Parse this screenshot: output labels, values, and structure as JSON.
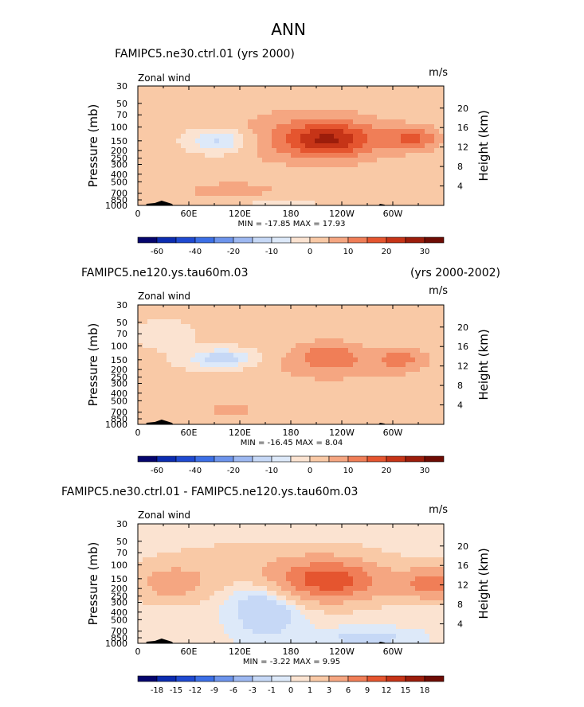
{
  "page": {
    "title": "ANN"
  },
  "chart_data": [
    {
      "type": "heatmap",
      "title": "FAMIPC5.ne30.ctrl.01 (yrs 2000)",
      "title_left": "FAMIPC5.ne30.ctrl.01 (yrs 2000)",
      "title_right": "",
      "field_label": "Zonal wind",
      "units": "m/s",
      "ylabel": "Pressure (mb)",
      "ylabel2": "Height (km)",
      "x_ticks": [
        "0",
        "60E",
        "120E",
        "180",
        "120W",
        "60W"
      ],
      "x_tick_lon": [
        0,
        60,
        120,
        180,
        240,
        300
      ],
      "xlim": [
        0,
        360
      ],
      "y_ticks": [
        "30",
        "50",
        "70",
        "100",
        "150",
        "200",
        "250",
        "300",
        "400",
        "500",
        "700",
        "850",
        "1000"
      ],
      "y_tick_p": [
        30,
        50,
        70,
        100,
        150,
        200,
        250,
        300,
        400,
        500,
        700,
        850,
        1000
      ],
      "ylim": [
        30,
        1000
      ],
      "height_ticks": [
        "20",
        "16",
        "12",
        "8",
        "4"
      ],
      "height_km": [
        20,
        16,
        12,
        8,
        4
      ],
      "min_max_text": "MIN = -17.85  MAX = 17.93",
      "min": -17.85,
      "max": 17.93,
      "colorbar_labels": [
        "-60",
        "-40",
        "-20",
        "-10",
        "0",
        "10",
        "20",
        "30"
      ],
      "colorbar_levels": [
        -60,
        -50,
        -40,
        -30,
        -20,
        -15,
        -10,
        -5,
        0,
        5,
        10,
        15,
        20,
        25,
        30
      ],
      "colorbar_colors": [
        "#05056d",
        "#0c2cb0",
        "#1f4ad1",
        "#3c6fe6",
        "#6d94ec",
        "#9db8f1",
        "#c6d8f6",
        "#dde9f9",
        "#fbe3d1",
        "#f9c9a6",
        "#f5a681",
        "#f07e57",
        "#e5552f",
        "#c63417",
        "#9c1d0b",
        "#6e0c04"
      ]
    },
    {
      "type": "heatmap",
      "title": "FAMIPC5.ne120.ys.tau60m.03 (yrs 2000-2002)",
      "title_left": "FAMIPC5.ne120.ys.tau60m.03",
      "title_right": "(yrs 2000-2002)",
      "field_label": "Zonal wind",
      "units": "m/s",
      "ylabel": "Pressure (mb)",
      "ylabel2": "Height (km)",
      "x_ticks": [
        "0",
        "60E",
        "120E",
        "180",
        "120W",
        "60W"
      ],
      "x_tick_lon": [
        0,
        60,
        120,
        180,
        240,
        300
      ],
      "xlim": [
        0,
        360
      ],
      "y_ticks": [
        "30",
        "50",
        "70",
        "100",
        "150",
        "200",
        "250",
        "300",
        "400",
        "500",
        "700",
        "850",
        "1000"
      ],
      "y_tick_p": [
        30,
        50,
        70,
        100,
        150,
        200,
        250,
        300,
        400,
        500,
        700,
        850,
        1000
      ],
      "ylim": [
        30,
        1000
      ],
      "height_ticks": [
        "20",
        "16",
        "12",
        "8",
        "4"
      ],
      "height_km": [
        20,
        16,
        12,
        8,
        4
      ],
      "min_max_text": "MIN = -16.45  MAX = 8.04",
      "min": -16.45,
      "max": 8.04,
      "colorbar_labels": [
        "-60",
        "-40",
        "-20",
        "-10",
        "0",
        "10",
        "20",
        "30"
      ],
      "colorbar_levels": [
        -60,
        -50,
        -40,
        -30,
        -20,
        -15,
        -10,
        -5,
        0,
        5,
        10,
        15,
        20,
        25,
        30
      ],
      "colorbar_colors": [
        "#05056d",
        "#0c2cb0",
        "#1f4ad1",
        "#3c6fe6",
        "#6d94ec",
        "#9db8f1",
        "#c6d8f6",
        "#dde9f9",
        "#fbe3d1",
        "#f9c9a6",
        "#f5a681",
        "#f07e57",
        "#e5552f",
        "#c63417",
        "#9c1d0b",
        "#6e0c04"
      ]
    },
    {
      "type": "heatmap",
      "title": "FAMIPC5.ne30.ctrl.01 - FAMIPC5.ne120.ys.tau60m.03",
      "title_left": "FAMIPC5.ne30.ctrl.01 - FAMIPC5.ne120.ys.tau60m.03",
      "title_right": "",
      "field_label": "Zonal wind",
      "units": "m/s",
      "ylabel": "Pressure (mb)",
      "ylabel2": "Height (km)",
      "x_ticks": [
        "0",
        "60E",
        "120E",
        "180",
        "120W",
        "60W"
      ],
      "x_tick_lon": [
        0,
        60,
        120,
        180,
        240,
        300
      ],
      "xlim": [
        0,
        360
      ],
      "y_ticks": [
        "30",
        "50",
        "70",
        "100",
        "150",
        "200",
        "250",
        "300",
        "400",
        "500",
        "700",
        "850",
        "1000"
      ],
      "y_tick_p": [
        30,
        50,
        70,
        100,
        150,
        200,
        250,
        300,
        400,
        500,
        700,
        850,
        1000
      ],
      "ylim": [
        30,
        1000
      ],
      "height_ticks": [
        "20",
        "16",
        "12",
        "8",
        "4"
      ],
      "height_km": [
        20,
        16,
        12,
        8,
        4
      ],
      "min_max_text": "MIN = -3.22  MAX = 9.95",
      "min": -3.22,
      "max": 9.95,
      "colorbar_labels": [
        "-18",
        "-15",
        "-12",
        "-9",
        "-6",
        "-3",
        "-1",
        "0",
        "1",
        "3",
        "6",
        "9",
        "12",
        "15",
        "18"
      ],
      "colorbar_levels": [
        -18,
        -15,
        -12,
        -9,
        -6,
        -3,
        -1,
        0,
        1,
        3,
        6,
        9,
        12,
        15,
        18
      ],
      "colorbar_colors": [
        "#05056d",
        "#0c2cb0",
        "#1f4ad1",
        "#3c6fe6",
        "#6d94ec",
        "#9db8f1",
        "#c6d8f6",
        "#dde9f9",
        "#fbe3d1",
        "#f9c9a6",
        "#f5a681",
        "#f07e57",
        "#e5552f",
        "#c63417",
        "#9c1d0b",
        "#6e0c04"
      ]
    }
  ]
}
